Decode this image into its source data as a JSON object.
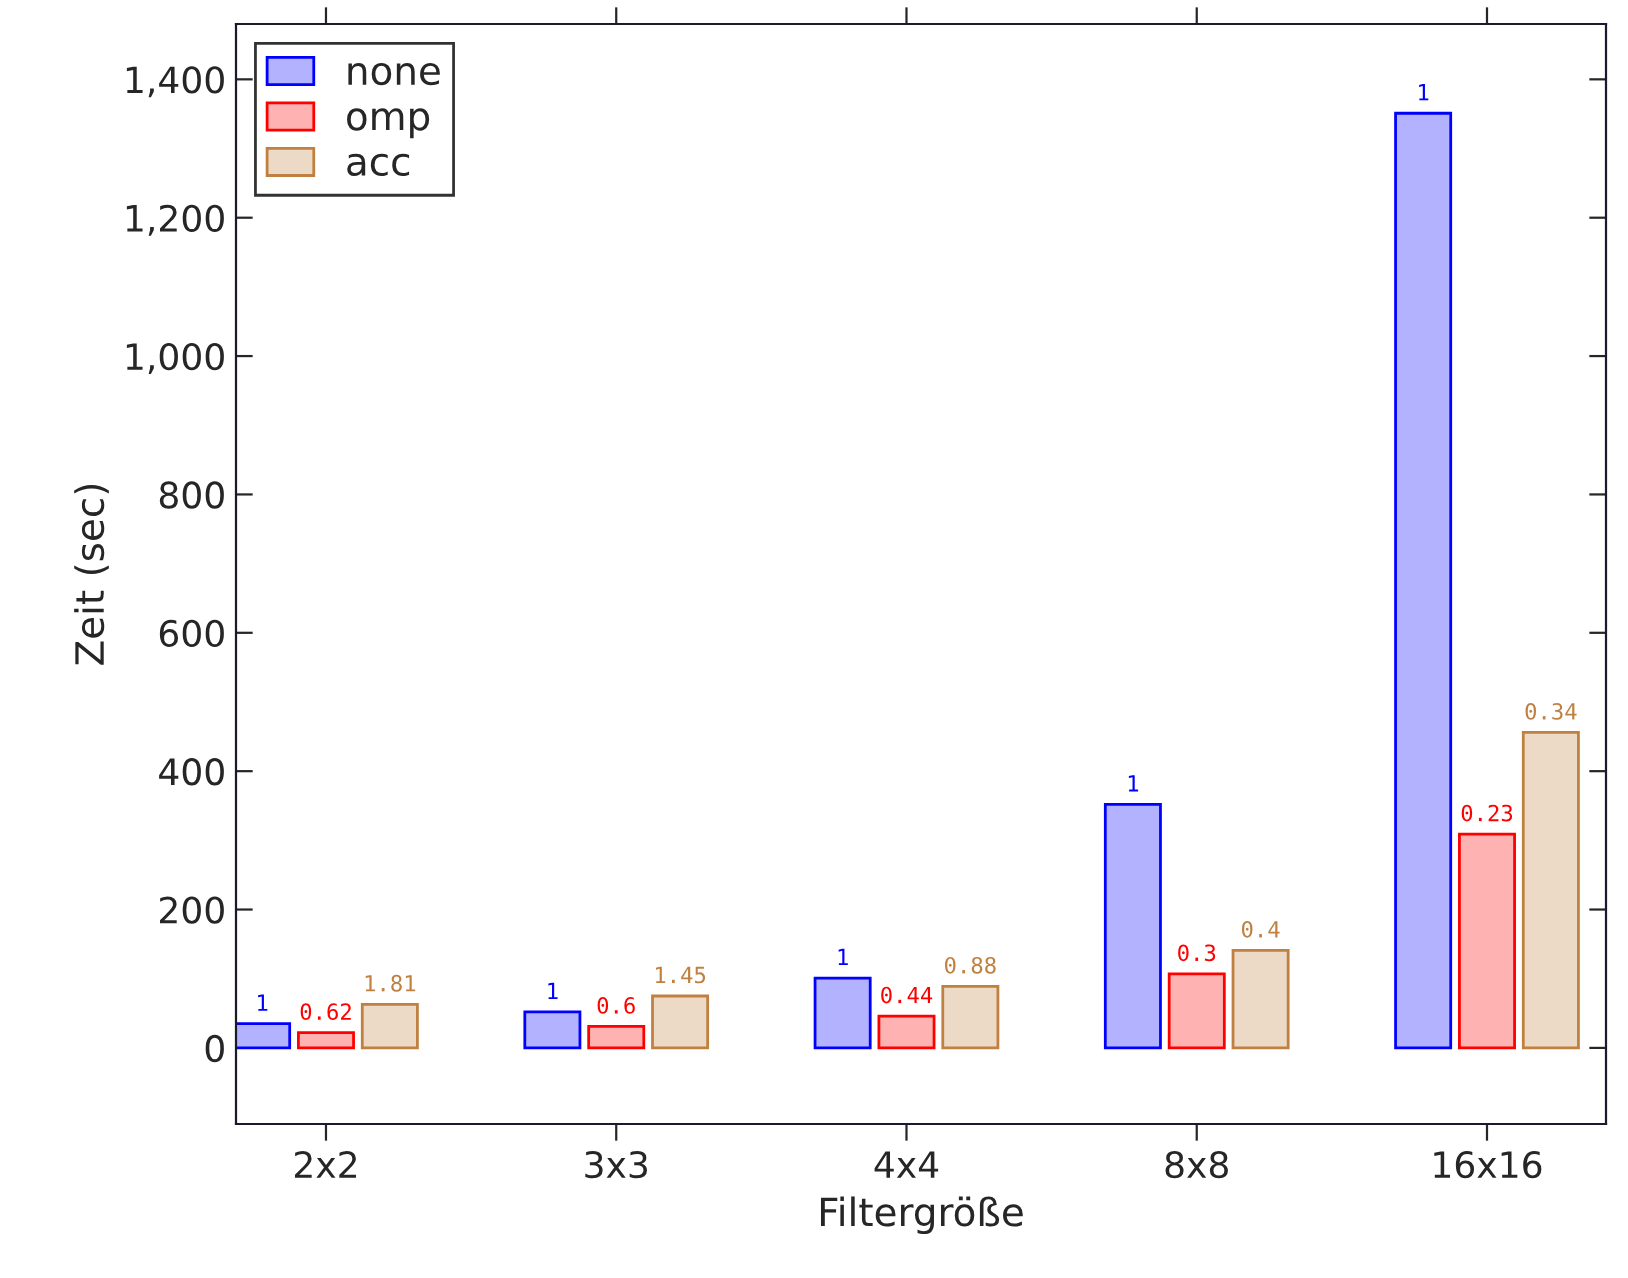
{
  "chart_data": {
    "type": "bar",
    "xlabel": "Filtergröße",
    "ylabel": "Zeit (sec)",
    "categories": [
      "2x2",
      "3x3",
      "4x4",
      "8x8",
      "16x16"
    ],
    "series": [
      {
        "name": "none",
        "color": "#0000ff",
        "values": [
          35,
          52,
          101,
          352,
          1351
        ]
      },
      {
        "name": "omp",
        "color": "#ff0000",
        "values": [
          22,
          31,
          46,
          107,
          309
        ]
      },
      {
        "name": "acc",
        "color": "#bf8040",
        "values": [
          63,
          75,
          89,
          141,
          456
        ]
      }
    ],
    "annotations": [
      "1",
      "0.62",
      "1.81",
      "1",
      "0.6",
      "1.45",
      "1",
      "0.44",
      "0.88",
      "1",
      "0.3",
      "0.4",
      "1",
      "0.23",
      "0.34"
    ],
    "ylim": [
      -110,
      1480
    ],
    "yticks": [
      0,
      200,
      400,
      600,
      800,
      {
        "value": 1000,
        "label": "1,000"
      },
      {
        "value": 1200,
        "label": "1,200"
      },
      {
        "value": 1400,
        "label": "1,400"
      }
    ],
    "legend": "top left",
    "grid": false
  }
}
